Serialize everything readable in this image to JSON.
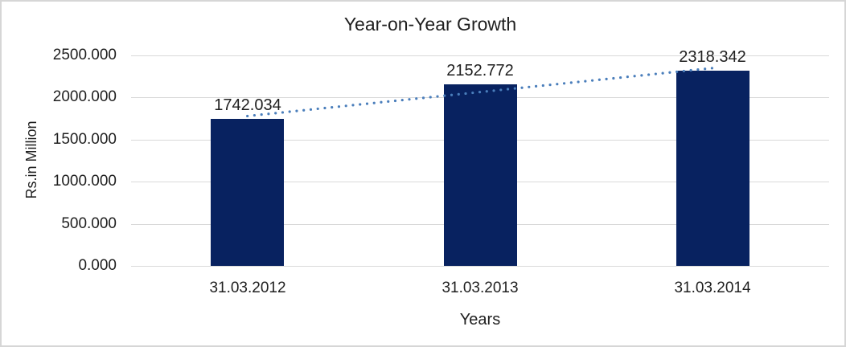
{
  "chart_data": {
    "type": "bar",
    "title": "Year-on-Year Growth",
    "xlabel": "Years",
    "ylabel": "Rs.in Million",
    "categories": [
      "31.03.2012",
      "31.03.2013",
      "31.03.2014"
    ],
    "values": [
      1742.034,
      2152.772,
      2318.342
    ],
    "value_labels": [
      "1742.034",
      "2152.772",
      "2318.342"
    ],
    "yticks": [
      0,
      500,
      1000,
      1500,
      2000,
      2500
    ],
    "ytick_labels": [
      "0.000",
      "500.000",
      "1000.000",
      "1500.000",
      "2000.000",
      "2500.000"
    ],
    "ylim": [
      0,
      2500
    ],
    "grid": true,
    "legend": false,
    "trendline": {
      "style": "dotted",
      "from": {
        "category_index": 0,
        "value": 1780
      },
      "to": {
        "category_index": 2,
        "value": 2350
      }
    },
    "colors": {
      "bar": "#082260",
      "trendline": "#4A7EBB",
      "gridline": "#D9D9D9",
      "text": "#1F1F1F",
      "border": "#D6D6D6",
      "background": "#FFFFFF"
    }
  }
}
